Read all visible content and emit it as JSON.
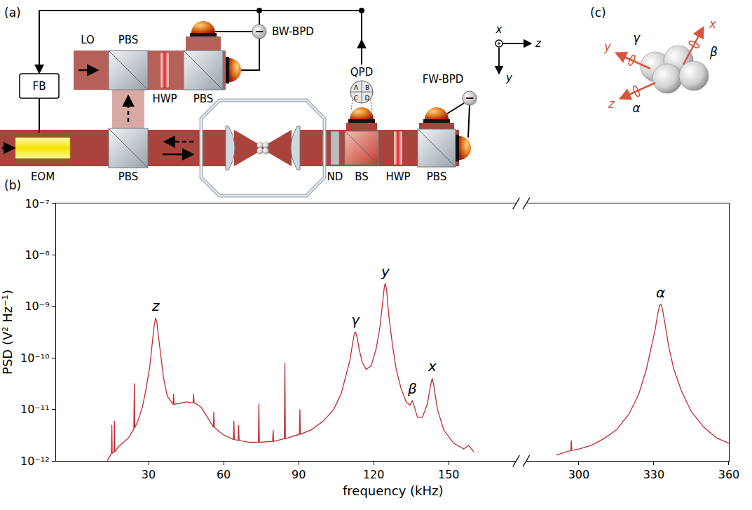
{
  "panel_labels": [
    "(a)",
    "(b)",
    "(c)"
  ],
  "setup": {
    "lo": "LO",
    "pbs": "PBS",
    "hwp": "HWP",
    "bw_bpd": "BW-BPD",
    "fb": "FB",
    "eom": "EOM",
    "nd": "ND",
    "bs": "BS",
    "fw_bpd": "FW-BPD",
    "qpd": "QPD",
    "qpd_quadrants": [
      "A",
      "B",
      "C",
      "D"
    ],
    "difference": "−",
    "frame_axes": [
      "x",
      "y",
      "z"
    ]
  },
  "particle": {
    "axes": [
      "x",
      "y",
      "z"
    ],
    "rotations": [
      "β",
      "γ",
      "α"
    ]
  },
  "chart_data": {
    "type": "line",
    "xlabel": "frequency (kHz)",
    "ylabel": "PSD (V² Hz⁻¹)",
    "log": "y",
    "grid": false,
    "color": "#c42a32",
    "xlim": [
      -7,
      360
    ],
    "x_break": [
      177,
      279
    ],
    "xticks": [
      30,
      60,
      90,
      120,
      150,
      300,
      330,
      360
    ],
    "ylim": [
      1e-12,
      1e-07
    ],
    "yticks": [
      {
        "value": 1e-12,
        "label": "10⁻¹²"
      },
      {
        "value": 1e-11,
        "label": "10⁻¹¹"
      },
      {
        "value": 1e-10,
        "label": "10⁻¹⁰"
      },
      {
        "value": 1e-09,
        "label": "10⁻⁹"
      },
      {
        "value": 1e-08,
        "label": "10⁻⁸"
      },
      {
        "value": 1e-07,
        "label": "10⁻⁷"
      }
    ],
    "x": [
      13.5,
      14.8,
      15.15,
      15.3,
      15.45,
      16.2,
      16.35,
      16.5,
      18,
      22,
      24.1,
      24.3,
      24.5,
      26,
      27.5,
      29,
      30.5,
      31.5,
      32.3,
      32.8,
      33.3,
      34,
      35,
      36,
      37.5,
      39.8,
      40,
      40.2,
      42,
      45,
      47.8,
      48,
      48.2,
      51,
      54,
      55.9,
      56.1,
      56.3,
      58,
      60,
      63.9,
      64.1,
      64.3,
      65.8,
      66,
      66.2,
      70,
      73.9,
      74.1,
      74.3,
      79.6,
      79.8,
      80,
      84.3,
      84.5,
      84.7,
      90.3,
      90.5,
      90.7,
      95,
      100,
      104,
      107,
      109,
      110.5,
      111.5,
      112.3,
      112.7,
      113.3,
      114.3,
      115.5,
      117,
      119,
      121,
      122.5,
      123.6,
      124.3,
      124.7,
      125.2,
      126,
      127.5,
      129,
      131,
      133,
      134.5,
      135.5,
      136.3,
      137.5,
      139.5,
      141.5,
      142.8,
      143.4,
      144,
      145.5,
      148,
      152,
      156,
      158,
      160,
      220,
      291,
      296.8,
      297,
      297.2,
      300,
      305,
      310,
      315,
      320,
      324,
      327,
      329,
      330.5,
      331.5,
      332.3,
      332.8,
      333.4,
      334.5,
      336,
      338,
      341,
      345,
      350,
      355,
      360
    ],
    "values": [
      1e-12,
      1.3e-12,
      1.4e-12,
      5e-12,
      1.4e-12,
      1.5e-12,
      6e-12,
      1.5e-12,
      1.9e-12,
      2.8e-12,
      4.2e-12,
      3.2e-11,
      4.4e-12,
      6.5e-12,
      1.1e-11,
      2.5e-11,
      7e-11,
      2e-10,
      4.5e-10,
      6e-10,
      5e-10,
      2.5e-10,
      9e-11,
      4e-11,
      1.8e-11,
      1.25e-11,
      2e-11,
      1.25e-11,
      1.3e-11,
      1.4e-11,
      1.35e-11,
      2e-11,
      1.35e-11,
      1.1e-11,
      6.5e-12,
      4.5e-12,
      9e-12,
      4.5e-12,
      3.8e-12,
      3.2e-12,
      2.6e-12,
      6e-12,
      2.6e-12,
      2.5e-12,
      5e-12,
      2.5e-12,
      2.3e-12,
      2.3e-12,
      1.3e-11,
      2.3e-12,
      2.4e-12,
      4e-12,
      2.4e-12,
      2.7e-12,
      8e-11,
      2.7e-12,
      3.3e-12,
      1e-11,
      3.3e-12,
      4e-12,
      6e-12,
      1e-11,
      2e-11,
      4.5e-11,
      9e-11,
      1.8e-10,
      3e-10,
      3.2e-10,
      2.6e-10,
      1.4e-10,
      8e-11,
      6e-11,
      7e-11,
      1.5e-10,
      4e-10,
      1.2e-09,
      2.5e-09,
      2.8e-09,
      2e-09,
      7e-10,
      1.8e-10,
      6e-11,
      2.5e-11,
      1.4e-11,
      1.2e-11,
      1.5e-11,
      1.1e-11,
      7e-12,
      7e-12,
      1.3e-11,
      3e-11,
      4e-11,
      3e-11,
      1e-11,
      4e-12,
      2.2e-12,
      1.7e-12,
      2e-12,
      1.5e-12,
      null,
      1.3e-12,
      1.6e-12,
      2.5e-12,
      1.6e-12,
      1.7e-12,
      2e-12,
      2.7e-12,
      4e-12,
      8e-12,
      2e-11,
      6e-11,
      1.6e-10,
      3.5e-10,
      7e-10,
      1.05e-09,
      1.1e-09,
      9e-10,
      4.5e-10,
      1.6e-10,
      6e-11,
      2.3e-11,
      9e-12,
      4.5e-12,
      2.8e-12,
      2.2e-12
    ],
    "annotations": [
      {
        "text": "z",
        "x": 32.8,
        "y": 6e-10
      },
      {
        "text": "γ",
        "x": 112.7,
        "y": 3.2e-10
      },
      {
        "text": "y",
        "x": 124.7,
        "y": 2.8e-09
      },
      {
        "text": "β",
        "x": 135.5,
        "y": 1.5e-11
      },
      {
        "text": "x",
        "x": 143.4,
        "y": 4e-11
      },
      {
        "text": "α",
        "x": 332.8,
        "y": 1.1e-09
      }
    ]
  }
}
